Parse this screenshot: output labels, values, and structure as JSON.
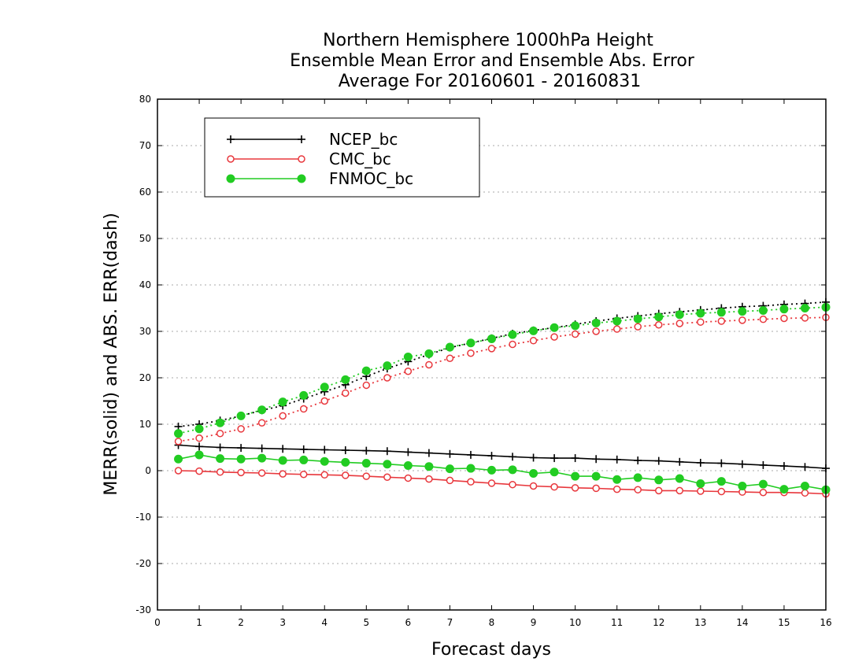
{
  "chart_data": {
    "type": "line",
    "title_lines": [
      "Northern Hemisphere 1000hPa Height",
      "Ensemble Mean Error and Ensemble Abs. Error",
      "Average For 20160601 - 20160831"
    ],
    "xlabel": "Forecast days",
    "ylabel": "MERR(solid) and ABS. ERR(dash)",
    "xlim": [
      0,
      16
    ],
    "ylim": [
      -30,
      80
    ],
    "xticks": [
      "0",
      "1",
      "2",
      "3",
      "4",
      "5",
      "6",
      "7",
      "8",
      "9",
      "10",
      "11",
      "12",
      "13",
      "14",
      "15",
      "16"
    ],
    "yticks": [
      "-30",
      "-20",
      "-10",
      "0",
      "10",
      "20",
      "30",
      "40",
      "50",
      "60",
      "70",
      "80"
    ],
    "grid": "horizontal dotted",
    "legend_position": "top-left",
    "x": [
      0.5,
      1,
      1.5,
      2,
      2.5,
      3,
      3.5,
      4,
      4.5,
      5,
      5.5,
      6,
      6.5,
      7,
      7.5,
      8,
      8.5,
      9,
      9.5,
      10,
      10.5,
      11,
      11.5,
      12,
      12.5,
      13,
      13.5,
      14,
      14.5,
      15,
      15.5,
      16
    ],
    "series": [
      {
        "name": "NCEP_bc",
        "color": "#000000",
        "marker": "plus",
        "merr": [
          5.5,
          5.2,
          5.0,
          4.9,
          4.8,
          4.7,
          4.6,
          4.5,
          4.4,
          4.3,
          4.2,
          4.0,
          3.8,
          3.6,
          3.4,
          3.2,
          3.0,
          2.8,
          2.7,
          2.7,
          2.5,
          2.4,
          2.2,
          2.1,
          1.9,
          1.7,
          1.6,
          1.4,
          1.2,
          1.0,
          0.8,
          0.5
        ],
        "abs_err": [
          9.5,
          10.0,
          10.8,
          11.8,
          13.0,
          14.0,
          15.5,
          17.0,
          18.5,
          20.3,
          22.0,
          23.5,
          25.0,
          26.5,
          27.5,
          28.5,
          29.5,
          30.2,
          30.8,
          31.5,
          32.2,
          32.8,
          33.3,
          33.8,
          34.2,
          34.6,
          35.0,
          35.3,
          35.5,
          35.8,
          36.0,
          36.3
        ]
      },
      {
        "name": "CMC_bc",
        "color": "#e8383d",
        "marker": "open-circle",
        "merr": [
          0.0,
          -0.1,
          -0.3,
          -0.4,
          -0.5,
          -0.7,
          -0.8,
          -0.9,
          -1.0,
          -1.2,
          -1.4,
          -1.6,
          -1.8,
          -2.1,
          -2.4,
          -2.7,
          -3.0,
          -3.3,
          -3.5,
          -3.7,
          -3.8,
          -4.0,
          -4.1,
          -4.3,
          -4.3,
          -4.4,
          -4.5,
          -4.6,
          -4.7,
          -4.7,
          -4.8,
          -5.0
        ],
        "abs_err": [
          6.3,
          7.0,
          8.0,
          9.0,
          10.3,
          11.8,
          13.3,
          15.0,
          16.7,
          18.4,
          20.0,
          21.4,
          22.8,
          24.2,
          25.3,
          26.3,
          27.2,
          28.0,
          28.8,
          29.4,
          30.0,
          30.5,
          31.0,
          31.4,
          31.7,
          32.0,
          32.2,
          32.4,
          32.6,
          32.8,
          32.9,
          33.0
        ]
      },
      {
        "name": "FNMOC_bc",
        "color": "#22cc22",
        "marker": "filled-circle",
        "merr": [
          2.5,
          3.4,
          2.6,
          2.5,
          2.7,
          2.2,
          2.3,
          2.0,
          1.8,
          1.6,
          1.4,
          1.1,
          0.9,
          0.4,
          0.5,
          0.1,
          0.2,
          -0.6,
          -0.3,
          -1.2,
          -1.2,
          -1.9,
          -1.5,
          -2.0,
          -1.7,
          -2.8,
          -2.3,
          -3.3,
          -2.9,
          -4.0,
          -3.3,
          -4.1
        ],
        "abs_err": [
          8.0,
          9.0,
          10.3,
          11.8,
          13.1,
          14.8,
          16.2,
          18.0,
          19.6,
          21.5,
          22.6,
          24.5,
          25.2,
          26.6,
          27.5,
          28.4,
          29.3,
          30.1,
          30.8,
          31.2,
          31.8,
          32.2,
          32.7,
          33.1,
          33.6,
          33.9,
          34.1,
          34.3,
          34.5,
          34.8,
          35.0,
          35.2
        ]
      }
    ]
  }
}
